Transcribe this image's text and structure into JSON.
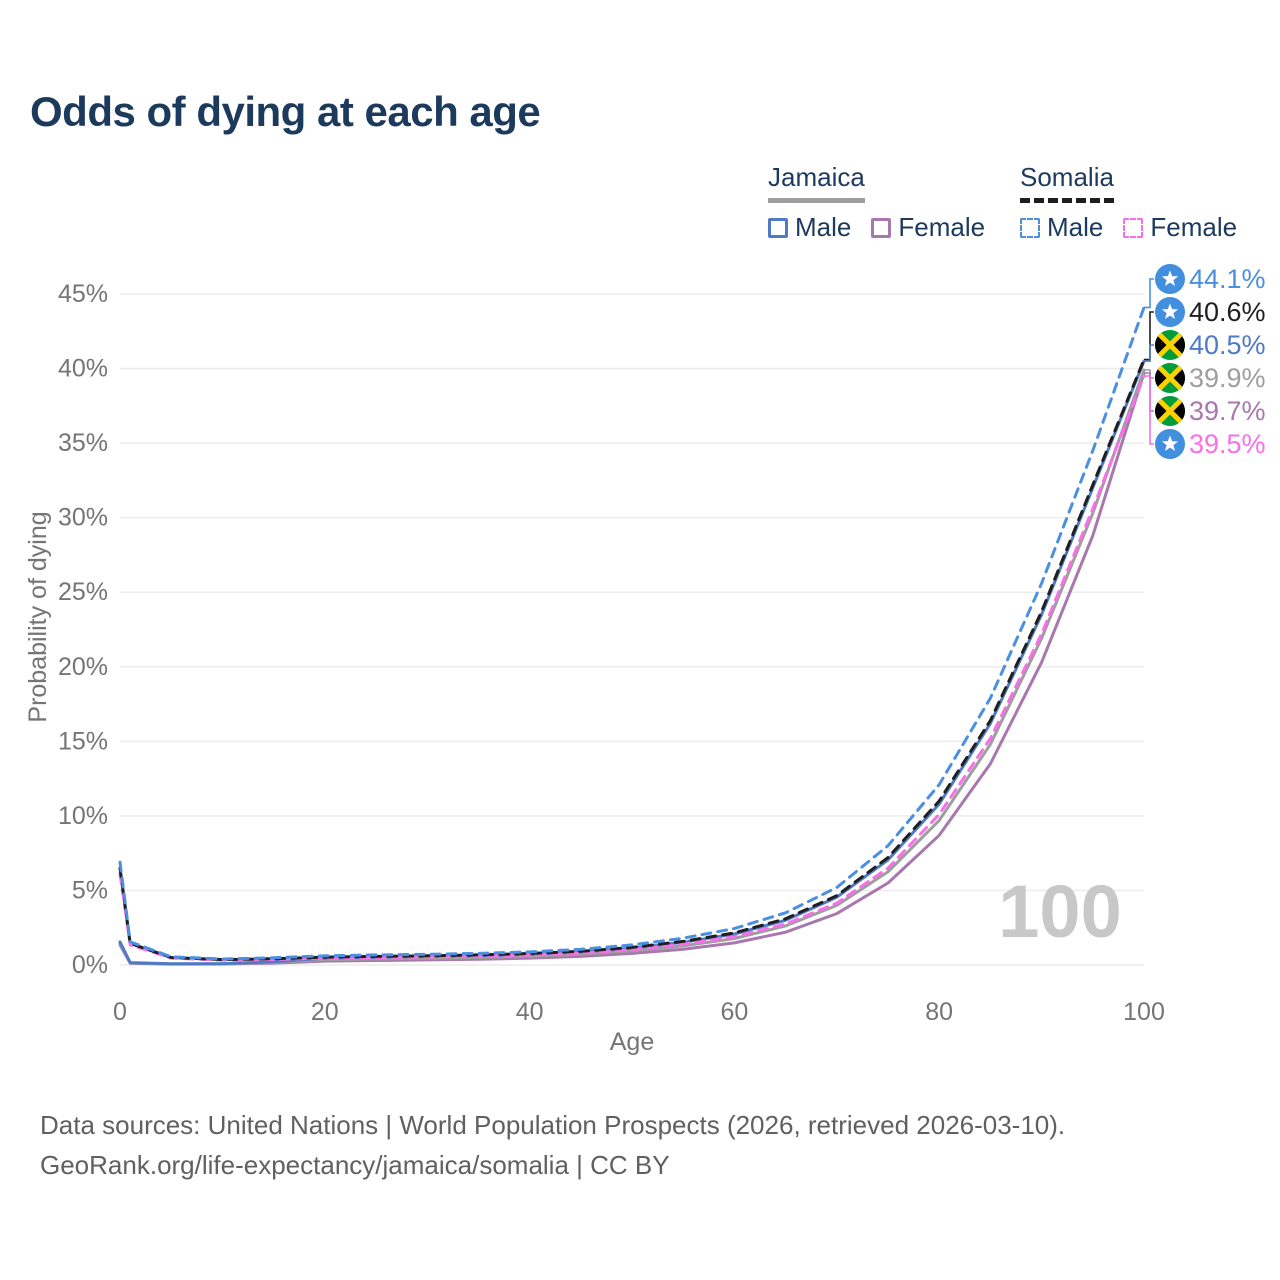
{
  "title": "Odds of dying at each age",
  "legend": {
    "groups": [
      {
        "id": "jamaica",
        "title": "Jamaica",
        "line_style": "solid",
        "items": [
          {
            "id": "jamaica-male",
            "label": "Male",
            "color_key": "jamaica_male"
          },
          {
            "id": "jamaica-female",
            "label": "Female",
            "color_key": "jamaica_female"
          }
        ]
      },
      {
        "id": "somalia",
        "title": "Somalia",
        "line_style": "dashed",
        "items": [
          {
            "id": "somalia-male",
            "label": "Male",
            "color_key": "somalia_male"
          },
          {
            "id": "somalia-female",
            "label": "Female",
            "color_key": "somalia_female"
          }
        ]
      }
    ]
  },
  "colors": {
    "jamaica_male": "#4f7ac7",
    "jamaica_female": "#a877ad",
    "jamaica_both": "#9e9e9e",
    "somalia_male": "#4b8fe2",
    "somalia_female": "#f76fe9",
    "somalia_both": "#1f1f1f",
    "jamaica_underline": "#9e9e9e",
    "somalia_underline": "#1f1f1f",
    "title_text": "#1c3a5c",
    "legend_text": "#1d3a5e",
    "axis_text": "#757575",
    "grid": "#ececec",
    "watermark": "#c8c8c8",
    "footer_text": "#606060",
    "somalia_flag_bg": "#418fde",
    "somalia_flag_star": "#ffffff",
    "jamaica_flag_green": "#009b3a",
    "jamaica_flag_black": "#000000",
    "jamaica_flag_gold": "#fed100"
  },
  "chart_data": {
    "type": "line",
    "title": "Odds of dying at each age",
    "xlabel": "Age",
    "ylabel": "Probability of dying",
    "xlim": [
      0,
      100
    ],
    "ylim": [
      0,
      45
    ],
    "grid": "horizontal",
    "legend_position": "top-right",
    "age_marker": "100",
    "x_ticks": [
      {
        "value": 0,
        "label": "0"
      },
      {
        "value": 20,
        "label": "20"
      },
      {
        "value": 40,
        "label": "40"
      },
      {
        "value": 60,
        "label": "60"
      },
      {
        "value": 80,
        "label": "80"
      },
      {
        "value": 100,
        "label": "100"
      }
    ],
    "y_ticks": [
      {
        "value": 0,
        "label": "0%"
      },
      {
        "value": 5,
        "label": "5%"
      },
      {
        "value": 10,
        "label": "10%"
      },
      {
        "value": 15,
        "label": "15%"
      },
      {
        "value": 20,
        "label": "20%"
      },
      {
        "value": 25,
        "label": "25%"
      },
      {
        "value": 30,
        "label": "30%"
      },
      {
        "value": 35,
        "label": "35%"
      },
      {
        "value": 40,
        "label": "40%"
      },
      {
        "value": 45,
        "label": "45%"
      }
    ],
    "x": [
      0,
      1,
      5,
      10,
      15,
      20,
      25,
      30,
      35,
      40,
      45,
      50,
      55,
      60,
      65,
      70,
      75,
      80,
      85,
      90,
      95,
      100
    ],
    "series": [
      {
        "id": "jamaica-female",
        "name": "Jamaica Female",
        "dash": false,
        "color_key": "jamaica_female",
        "values": [
          1.35,
          0.12,
          0.06,
          0.07,
          0.13,
          0.26,
          0.3,
          0.34,
          0.38,
          0.46,
          0.58,
          0.78,
          1.05,
          1.48,
          2.2,
          3.45,
          5.5,
          8.7,
          13.5,
          20.3,
          28.8,
          39.7
        ]
      },
      {
        "id": "jamaica-both",
        "name": "Jamaica Both sexes",
        "dash": false,
        "color_key": "jamaica_both",
        "values": [
          1.45,
          0.14,
          0.07,
          0.08,
          0.17,
          0.36,
          0.41,
          0.45,
          0.5,
          0.59,
          0.73,
          0.95,
          1.28,
          1.78,
          2.62,
          4.0,
          6.25,
          9.7,
          14.8,
          21.9,
          30.3,
          39.9
        ]
      },
      {
        "id": "jamaica-male",
        "name": "Jamaica Male",
        "dash": false,
        "color_key": "jamaica_male",
        "values": [
          1.55,
          0.16,
          0.08,
          0.09,
          0.22,
          0.46,
          0.52,
          0.57,
          0.63,
          0.72,
          0.88,
          1.13,
          1.52,
          2.08,
          3.0,
          4.55,
          7.05,
          10.8,
          16.2,
          23.5,
          32.0,
          40.5
        ]
      },
      {
        "id": "somalia-female",
        "name": "Somalia Female",
        "dash": true,
        "color_key": "somalia_female",
        "values": [
          6.1,
          1.35,
          0.46,
          0.33,
          0.37,
          0.46,
          0.5,
          0.54,
          0.59,
          0.67,
          0.8,
          1.03,
          1.38,
          1.9,
          2.75,
          4.15,
          6.5,
          10.1,
          15.2,
          22.2,
          30.6,
          39.5
        ]
      },
      {
        "id": "somalia-both",
        "name": "Somalia Both sexes",
        "dash": true,
        "color_key": "somalia_both",
        "values": [
          6.5,
          1.45,
          0.5,
          0.36,
          0.42,
          0.53,
          0.58,
          0.62,
          0.68,
          0.77,
          0.92,
          1.18,
          1.58,
          2.15,
          3.1,
          4.65,
          7.2,
          11.0,
          16.4,
          23.7,
          32.2,
          40.6
        ]
      },
      {
        "id": "somalia-male",
        "name": "Somalia Male",
        "dash": true,
        "color_key": "somalia_male",
        "values": [
          6.9,
          1.55,
          0.55,
          0.4,
          0.48,
          0.62,
          0.68,
          0.72,
          0.78,
          0.88,
          1.05,
          1.35,
          1.8,
          2.45,
          3.5,
          5.2,
          8.0,
          12.1,
          17.9,
          25.6,
          34.5,
          44.1
        ]
      }
    ],
    "end_labels": [
      {
        "series": "somalia-male",
        "flag": "somalia",
        "text": "44.1%",
        "color_key": "somalia_male"
      },
      {
        "series": "somalia-both",
        "flag": "somalia",
        "text": "40.6%",
        "color_key": "somalia_both"
      },
      {
        "series": "jamaica-male",
        "flag": "jamaica",
        "text": "40.5%",
        "color_key": "jamaica_male"
      },
      {
        "series": "jamaica-both",
        "flag": "jamaica",
        "text": "39.9%",
        "color_key": "jamaica_both"
      },
      {
        "series": "jamaica-female",
        "flag": "jamaica",
        "text": "39.7%",
        "color_key": "jamaica_female"
      },
      {
        "series": "somalia-female",
        "flag": "somalia",
        "text": "39.5%",
        "color_key": "somalia_female"
      }
    ]
  },
  "footer": {
    "line1": "Data sources: United Nations | World Population Prospects (2026, retrieved 2026-03-10).",
    "line2": "GeoRank.org/life-expectancy/jamaica/somalia | CC BY"
  }
}
